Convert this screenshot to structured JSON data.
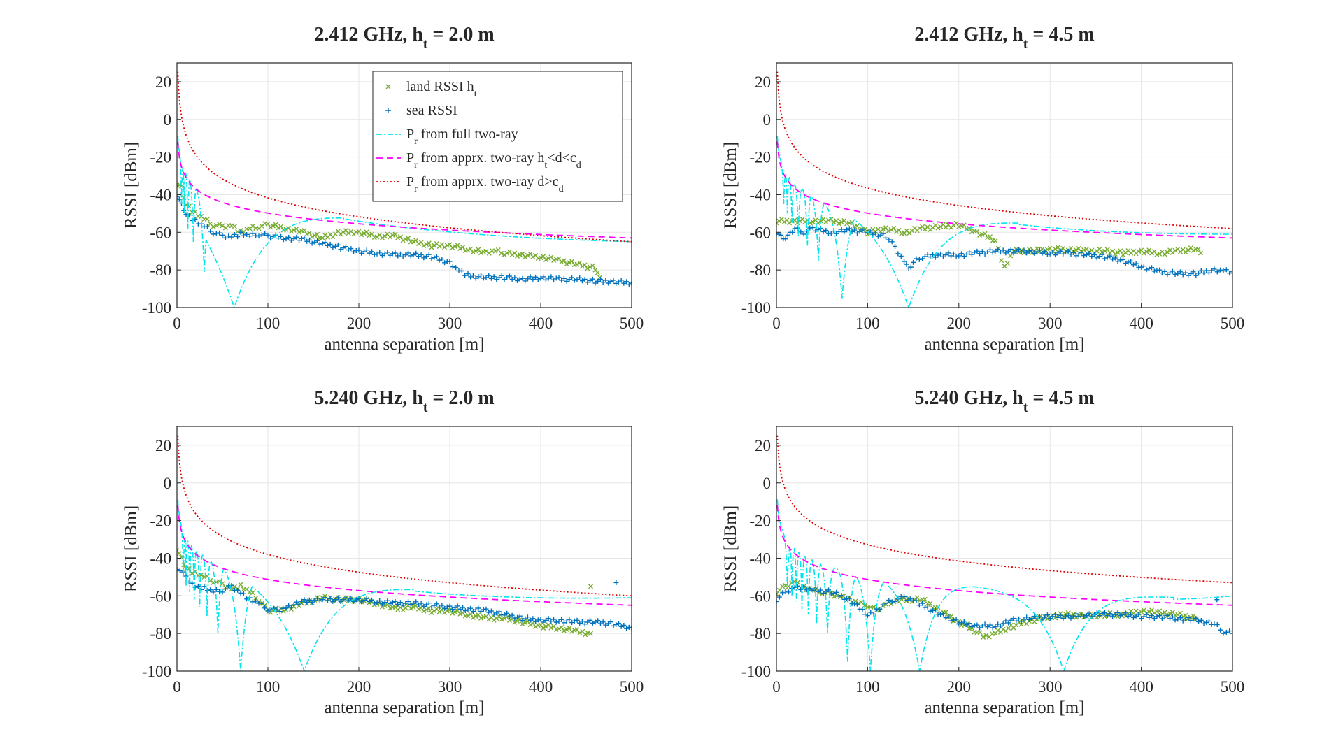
{
  "figure": {
    "legend_panel": 0,
    "legend_location": "top-right",
    "legend": {
      "land": {
        "main": "land RSSI h",
        "sub": "t",
        "suffix": ""
      },
      "sea": {
        "main": "sea RSSI",
        "sub": "",
        "suffix": ""
      },
      "full": {
        "main": "P",
        "sub": "r",
        "suffix": " from full two-ray"
      },
      "approx1": {
        "main": "P",
        "sub": "r",
        "suffix": " from apprx. two-ray h",
        "sub2": "t",
        "suffix2": "<d<c",
        "sub3": "d"
      },
      "approx2": {
        "main": "P",
        "sub": "r",
        "suffix": " from apprx. two-ray d>c",
        "sub2": "d"
      }
    },
    "colors": {
      "land": "#77AC30",
      "sea": "#0072BD",
      "full": "#00E5EE",
      "approx1": "#FF00FF",
      "approx2": "#E00000",
      "grid": "#E6E6E6",
      "axis": "#262626"
    }
  },
  "chart_data": [
    {
      "type": "scatter",
      "title": {
        "pre": "2.412 GHz, h",
        "sub": "t",
        "post": " = 2.0 m"
      },
      "xlabel": "antenna separation [m]",
      "ylabel": "RSSI [dBm]",
      "xlim": [
        0,
        500
      ],
      "ylim": [
        -100,
        30
      ],
      "xticks": [
        0,
        100,
        200,
        300,
        400,
        500
      ],
      "yticks": [
        -100,
        -80,
        -60,
        -40,
        -20,
        0,
        20
      ],
      "grid": true,
      "model": {
        "full_endpoint": -65,
        "approx1_endpoint": -63,
        "approx2_endpoint": -65,
        "nulls": [
          5,
          8,
          12,
          18,
          30,
          63
        ],
        "null_depth": [
          -45,
          -50,
          -58,
          -65,
          -81,
          -100
        ]
      },
      "series": [
        {
          "key": "land",
          "x": [
            0,
            5,
            10,
            20,
            30,
            40,
            50,
            60,
            70,
            80,
            90,
            100,
            120,
            140,
            160,
            180,
            200,
            220,
            240,
            260,
            280,
            300,
            320,
            340,
            350,
            360,
            380,
            400,
            420,
            440,
            460,
            465
          ],
          "y": [
            -34,
            -36,
            -45,
            -50,
            -53,
            -56,
            -57,
            -56,
            -60,
            -58,
            -57,
            -56,
            -58,
            -60,
            -63,
            -60,
            -60,
            -62,
            -62,
            -65,
            -67,
            -67,
            -69,
            -71,
            -70,
            -71,
            -72,
            -73,
            -75,
            -77,
            -79,
            -84
          ]
        },
        {
          "key": "sea",
          "x": [
            0,
            5,
            10,
            20,
            30,
            40,
            50,
            60,
            70,
            80,
            90,
            100,
            120,
            140,
            160,
            180,
            200,
            220,
            240,
            260,
            280,
            300,
            310,
            320,
            340,
            360,
            380,
            400,
            420,
            440,
            460,
            480,
            500
          ],
          "y": [
            -40,
            -45,
            -50,
            -54,
            -57,
            -60,
            -62,
            -62,
            -61,
            -62,
            -61,
            -62,
            -63,
            -64,
            -66,
            -68,
            -70,
            -71,
            -72,
            -72,
            -73,
            -76,
            -80,
            -83,
            -84,
            -84,
            -85,
            -84,
            -85,
            -85,
            -86,
            -86,
            -87
          ]
        }
      ]
    },
    {
      "type": "scatter",
      "title": {
        "pre": "2.412 GHz, h",
        "sub": "t",
        "post": " = 4.5 m"
      },
      "xlabel": "antenna separation [m]",
      "ylabel": "RSSI [dBm]",
      "xlim": [
        0,
        500
      ],
      "ylim": [
        -100,
        30
      ],
      "xticks": [
        0,
        100,
        200,
        300,
        400,
        500
      ],
      "yticks": [
        -100,
        -80,
        -60,
        -40,
        -20,
        0,
        20
      ],
      "grid": true,
      "model": {
        "full_endpoint": -61,
        "approx1_endpoint": -63,
        "approx2_endpoint": -58,
        "nulls": [
          8,
          12,
          17,
          24,
          34,
          46,
          72,
          145
        ],
        "null_depth": [
          -45,
          -50,
          -55,
          -62,
          -67,
          -75,
          -95,
          -100
        ]
      },
      "series": [
        {
          "key": "land",
          "x": [
            0,
            20,
            40,
            60,
            80,
            100,
            120,
            140,
            160,
            180,
            200,
            220,
            240,
            250,
            260,
            280,
            300,
            320,
            340,
            360,
            380,
            400,
            420,
            440,
            460,
            465
          ],
          "y": [
            -54,
            -54,
            -54,
            -54,
            -55,
            -60,
            -58,
            -60,
            -58,
            -57,
            -56,
            -60,
            -64,
            -79,
            -70,
            -70,
            -69,
            -69,
            -70,
            -70,
            -71,
            -70,
            -71,
            -70,
            -69,
            -71
          ]
        },
        {
          "key": "sea",
          "x": [
            0,
            5,
            10,
            15,
            20,
            30,
            40,
            60,
            80,
            100,
            120,
            130,
            140,
            145,
            150,
            160,
            180,
            200,
            220,
            240,
            260,
            280,
            300,
            320,
            340,
            360,
            380,
            400,
            420,
            440,
            460,
            480,
            490,
            500
          ],
          "y": [
            -60,
            -62,
            -63,
            -61,
            -58,
            -60,
            -58,
            -60,
            -59,
            -60,
            -62,
            -68,
            -75,
            -80,
            -76,
            -73,
            -72,
            -72,
            -71,
            -70,
            -70,
            -70,
            -71,
            -71,
            -72,
            -73,
            -75,
            -78,
            -81,
            -82,
            -82,
            -80,
            -80,
            -81
          ]
        }
      ]
    },
    {
      "type": "scatter",
      "title": {
        "pre": "5.240 GHz, h",
        "sub": "t",
        "post": " = 2.0 m"
      },
      "xlabel": "antenna separation [m]",
      "ylabel": "RSSI [dBm]",
      "xlim": [
        0,
        500
      ],
      "ylim": [
        -100,
        30
      ],
      "xticks": [
        0,
        100,
        200,
        300,
        400,
        500
      ],
      "yticks": [
        -100,
        -80,
        -60,
        -40,
        -20,
        0,
        20
      ],
      "grid": true,
      "model": {
        "full_endpoint": -61,
        "approx1_endpoint": -65,
        "approx2_endpoint": -60,
        "nulls": [
          7,
          10,
          14,
          19,
          25,
          33,
          45,
          70,
          140
        ],
        "null_depth": [
          -50,
          -55,
          -58,
          -62,
          -66,
          -71,
          -80,
          -100,
          -100
        ]
      },
      "series": [
        {
          "key": "land",
          "x": [
            0,
            5,
            10,
            20,
            30,
            40,
            50,
            60,
            70,
            80,
            90,
            100,
            120,
            140,
            160,
            180,
            200,
            220,
            240,
            260,
            280,
            300,
            320,
            340,
            360,
            380,
            400,
            420,
            440,
            455
          ],
          "y": [
            -35,
            -40,
            -45,
            -48,
            -50,
            -52,
            -54,
            -56,
            -55,
            -58,
            -62,
            -68,
            -67,
            -64,
            -61,
            -62,
            -62,
            -64,
            -67,
            -66,
            -68,
            -68,
            -70,
            -72,
            -72,
            -74,
            -76,
            -77,
            -79,
            -80
          ]
        },
        {
          "key": "sea",
          "x": [
            0,
            10,
            20,
            30,
            40,
            50,
            60,
            70,
            80,
            90,
            100,
            110,
            120,
            140,
            160,
            180,
            200,
            220,
            240,
            260,
            280,
            300,
            320,
            340,
            360,
            380,
            400,
            420,
            440,
            460,
            480,
            500
          ],
          "y": [
            -45,
            -50,
            -55,
            -56,
            -58,
            -57,
            -55,
            -58,
            -62,
            -64,
            -67,
            -68,
            -66,
            -63,
            -62,
            -62,
            -62,
            -63,
            -64,
            -64,
            -65,
            -66,
            -67,
            -68,
            -70,
            -72,
            -73,
            -73,
            -74,
            -74,
            -75,
            -77
          ]
        }
      ],
      "outliers": [
        {
          "key": "land",
          "x": 455,
          "y": -55
        },
        {
          "key": "sea",
          "x": 483,
          "y": -53
        }
      ]
    },
    {
      "type": "scatter",
      "title": {
        "pre": "5.240 GHz, h",
        "sub": "t",
        "post": " = 4.5 m"
      },
      "xlabel": "antenna separation [m]",
      "ylabel": "RSSI [dBm]",
      "xlim": [
        0,
        500
      ],
      "ylim": [
        -100,
        30
      ],
      "xticks": [
        0,
        100,
        200,
        300,
        400,
        500
      ],
      "yticks": [
        -100,
        -80,
        -60,
        -40,
        -20,
        0,
        20
      ],
      "grid": true,
      "model": {
        "full_endpoint": -60,
        "approx1_endpoint": -65,
        "approx2_endpoint": -53,
        "nulls": [
          12,
          17,
          22,
          28,
          35,
          44,
          56,
          78,
          103,
          157,
          315
        ],
        "null_depth": [
          -55,
          -60,
          -63,
          -67,
          -70,
          -75,
          -80,
          -95,
          -100,
          -100,
          -100
        ]
      },
      "series": [
        {
          "key": "land",
          "x": [
            0,
            10,
            20,
            30,
            40,
            50,
            60,
            70,
            80,
            90,
            100,
            110,
            120,
            140,
            160,
            180,
            200,
            220,
            230,
            240,
            260,
            280,
            300,
            320,
            340,
            360,
            380,
            400,
            420,
            440,
            460
          ],
          "y": [
            -58,
            -55,
            -52,
            -56,
            -57,
            -58,
            -59,
            -60,
            -62,
            -64,
            -65,
            -68,
            -64,
            -62,
            -62,
            -68,
            -74,
            -79,
            -82,
            -80,
            -76,
            -73,
            -71,
            -70,
            -71,
            -70,
            -70,
            -68,
            -69,
            -70,
            -72
          ]
        },
        {
          "key": "sea",
          "x": [
            0,
            10,
            20,
            30,
            40,
            60,
            80,
            100,
            110,
            120,
            130,
            140,
            150,
            160,
            180,
            200,
            220,
            240,
            260,
            280,
            300,
            320,
            340,
            360,
            380,
            400,
            420,
            440,
            460,
            480,
            490,
            500
          ],
          "y": [
            -62,
            -58,
            -55,
            -56,
            -57,
            -58,
            -62,
            -70,
            -68,
            -64,
            -62,
            -61,
            -62,
            -65,
            -70,
            -74,
            -76,
            -76,
            -73,
            -72,
            -71,
            -71,
            -70,
            -70,
            -70,
            -71,
            -71,
            -72,
            -73,
            -75,
            -79,
            -80
          ]
        }
      ],
      "outliers": [
        {
          "key": "sea",
          "x": 483,
          "y": -62
        }
      ]
    }
  ]
}
